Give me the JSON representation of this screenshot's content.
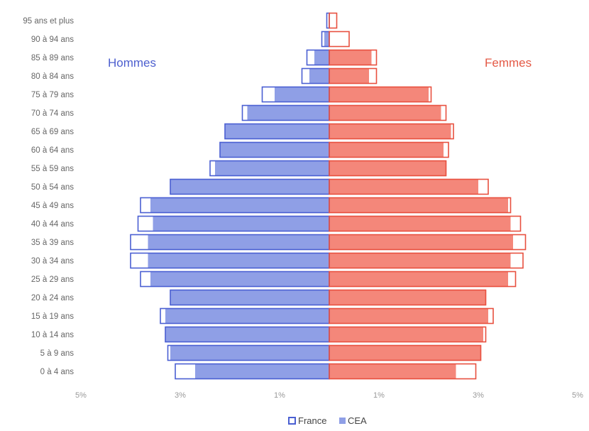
{
  "chart_data": {
    "type": "bar",
    "orientation": "horizontal",
    "layout": "population-pyramid",
    "categories": [
      "0 à 4 ans",
      "5 à 9 ans",
      "10 à 14 ans",
      "15 à 19 ans",
      "20 à 24 ans",
      "25 à 29 ans",
      "30 à 34 ans",
      "35 à 39 ans",
      "40 à 44 ans",
      "45 à 49 ans",
      "50 à 54 ans",
      "55 à 59 ans",
      "60 à 64 ans",
      "65 à 69 ans",
      "70 à 74 ans",
      "75 à 79 ans",
      "80 à 84 ans",
      "85 à 89 ans",
      "90 à 94 ans",
      "95 ans et plus"
    ],
    "side_labels": {
      "left": "Hommes",
      "right": "Femmes"
    },
    "series": [
      {
        "name": "France",
        "style": "outline",
        "hommes": [
          3.1,
          3.25,
          3.3,
          3.4,
          3.2,
          3.8,
          4.0,
          4.0,
          3.85,
          3.8,
          3.2,
          2.4,
          2.2,
          2.1,
          1.75,
          1.35,
          0.55,
          0.45,
          0.15,
          0.05
        ],
        "femmes": [
          2.95,
          3.05,
          3.15,
          3.3,
          3.15,
          3.75,
          3.9,
          3.95,
          3.85,
          3.65,
          3.2,
          2.35,
          2.4,
          2.5,
          2.35,
          2.05,
          0.95,
          0.95,
          0.4,
          0.15
        ]
      },
      {
        "name": "CEA",
        "style": "filled",
        "hommes": [
          2.7,
          3.2,
          3.3,
          3.3,
          3.2,
          3.6,
          3.65,
          3.65,
          3.55,
          3.6,
          3.2,
          2.3,
          2.2,
          2.1,
          1.65,
          1.1,
          0.4,
          0.3,
          0.1,
          0.0
        ],
        "femmes": [
          2.55,
          3.05,
          3.1,
          3.2,
          3.15,
          3.6,
          3.65,
          3.7,
          3.65,
          3.6,
          3.0,
          2.35,
          2.3,
          2.45,
          2.25,
          2.0,
          0.8,
          0.85,
          0.0,
          0.0
        ]
      }
    ],
    "xlim": [
      -5,
      5
    ],
    "x_ticks": [
      -5,
      -3,
      -1,
      1,
      3,
      5
    ],
    "x_tick_labels": [
      "5%",
      "3%",
      "1%",
      "1%",
      "3%",
      "5%"
    ],
    "legend": [
      "France",
      "CEA"
    ],
    "legend_position": "bottom",
    "grid": false,
    "colors": {
      "hommes_fill": "#8f9fe6",
      "hommes_stroke": "#4a5fd2",
      "femmes_fill": "#f4877a",
      "femmes_stroke": "#e8503f",
      "hommes_title": "#4d5fcf",
      "femmes_title": "#e45a46"
    }
  }
}
